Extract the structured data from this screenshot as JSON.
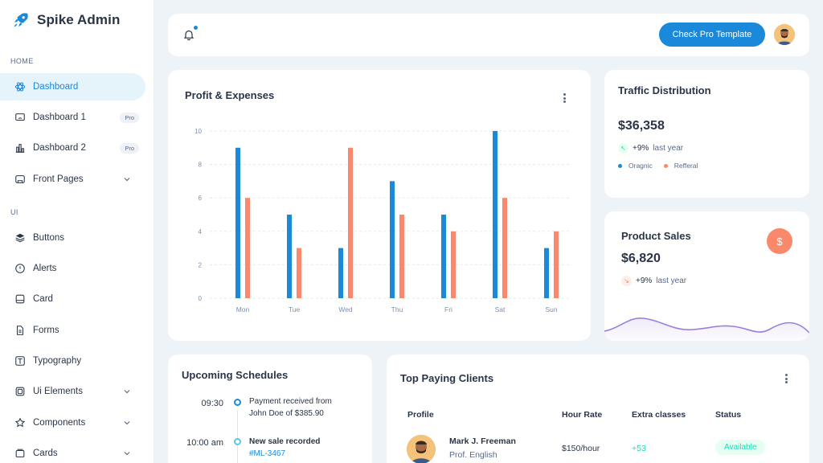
{
  "app": {
    "name": "Spike Admin"
  },
  "sidebar": {
    "sections": [
      {
        "label": "HOME"
      },
      {
        "label": "UI"
      }
    ],
    "items": [
      {
        "label": "Dashboard",
        "icon": "atom-icon",
        "active": true
      },
      {
        "label": "Dashboard 1",
        "icon": "screen-icon",
        "badge": "Pro"
      },
      {
        "label": "Dashboard 2",
        "icon": "chart-bar-icon",
        "badge": "Pro"
      },
      {
        "label": "Front Pages",
        "icon": "app-window-icon",
        "chevron": true
      },
      {
        "label": "Buttons",
        "icon": "layers-icon"
      },
      {
        "label": "Alerts",
        "icon": "alert-circle-icon"
      },
      {
        "label": "Card",
        "icon": "card-icon"
      },
      {
        "label": "Forms",
        "icon": "file-text-icon"
      },
      {
        "label": "Typography",
        "icon": "typography-icon"
      },
      {
        "label": "Ui Elements",
        "icon": "box-icon",
        "chevron": true
      },
      {
        "label": "Components",
        "icon": "puzzle-icon",
        "chevron": true
      },
      {
        "label": "Cards",
        "icon": "cards-icon",
        "chevron": true
      }
    ]
  },
  "header": {
    "cta_label": "Check Pro Template",
    "accent": "#1a89d9"
  },
  "profit": {
    "title": "Profit & Expenses"
  },
  "chart_data": {
    "type": "bar",
    "title": "Profit & Expenses",
    "categories": [
      "Mon",
      "Tue",
      "Wed",
      "Thu",
      "Fri",
      "Sat",
      "Sun"
    ],
    "series": [
      {
        "values": [
          9,
          5,
          3,
          7,
          5,
          10,
          3
        ],
        "color": "#1a89d9"
      },
      {
        "values": [
          6,
          3,
          9,
          5,
          4,
          6,
          4
        ],
        "color": "#fa896b"
      }
    ],
    "ylim": [
      0,
      10
    ],
    "yticks": [
      "0",
      "2",
      "4",
      "6",
      "8",
      "10"
    ],
    "grid": true
  },
  "traffic": {
    "title": "Traffic Distribution",
    "value": "$36,358",
    "trend_pct": "+9%",
    "trend_label": "last year",
    "legend": [
      {
        "label": "Oragnic",
        "color": "#1a89d9"
      },
      {
        "label": "Refferal",
        "color": "#fa896b"
      }
    ]
  },
  "product_sales": {
    "title": "Product Sales",
    "value": "$6,820",
    "trend_pct": "+9%",
    "trend_label": "last year",
    "badge_symbol": "$"
  },
  "schedules": {
    "title": "Upcoming Schedules",
    "items": [
      {
        "time": "09:30",
        "text": "Payment received from John Doe of $385.90",
        "line1": "Payment received from",
        "line2": "John Doe of $385.90"
      },
      {
        "time": "10:00 am",
        "line1": "New sale recorded",
        "line2": "#ML-3467"
      }
    ]
  },
  "clients": {
    "title": "Top Paying Clients",
    "columns": [
      "Profile",
      "Hour Rate",
      "Extra classes",
      "Status"
    ],
    "rows": [
      {
        "name": "Mark J. Freeman",
        "subtitle": "Prof. English",
        "rate": "$150/hour",
        "extra": "+53",
        "status": "Available"
      }
    ]
  }
}
